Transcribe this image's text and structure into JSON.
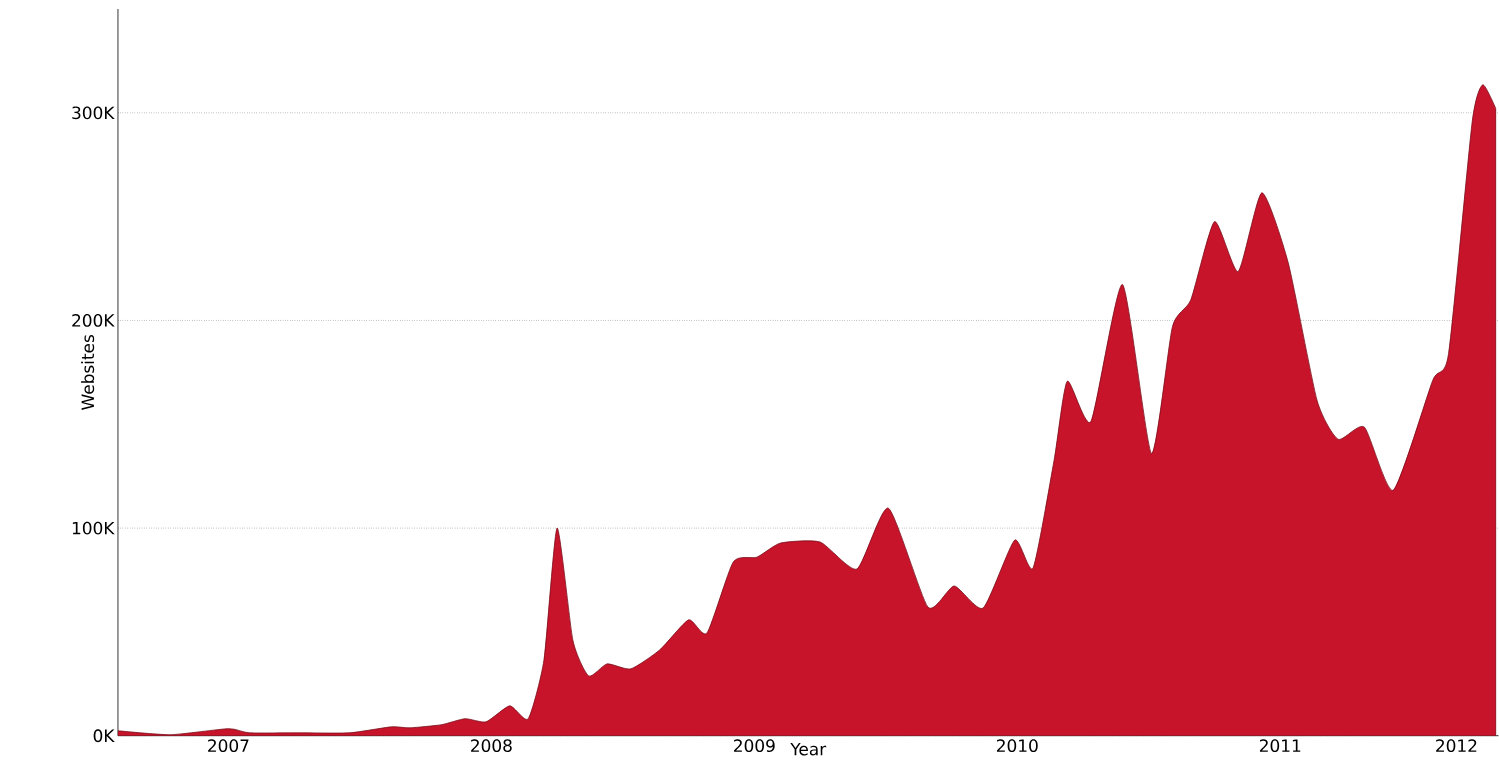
{
  "chart_data": {
    "type": "area",
    "xlabel": "Year",
    "ylabel": "Websites",
    "x": [
      2006.58,
      2006.78,
      2007.0,
      2007.08,
      2007.27,
      2007.46,
      2007.62,
      2007.69,
      2007.81,
      2007.9,
      2007.98,
      2008.07,
      2008.14,
      2008.2,
      2008.25,
      2008.31,
      2008.37,
      2008.44,
      2008.53,
      2008.64,
      2008.75,
      2008.82,
      2008.92,
      2009.01,
      2009.1,
      2009.25,
      2009.39,
      2009.51,
      2009.66,
      2009.76,
      2009.87,
      2009.99,
      2010.06,
      2010.14,
      2010.19,
      2010.28,
      2010.4,
      2010.51,
      2010.59,
      2010.66,
      2010.75,
      2010.84,
      2010.93,
      2011.03,
      2011.14,
      2011.22,
      2011.32,
      2011.43,
      2011.58,
      2011.64,
      2011.73,
      2011.77,
      2011.82
    ],
    "series": [
      {
        "color": "#c8142a",
        "values": [
          2.4,
          0.5,
          3.4,
          1.4,
          1.4,
          1.4,
          4.3,
          3.8,
          5.3,
          8.2,
          6.7,
          14.4,
          8.2,
          36.5,
          100,
          46,
          28.8,
          34.6,
          32.2,
          41.3,
          55.8,
          49.5,
          83.7,
          86,
          92.8,
          93.3,
          80.3,
          109.6,
          62,
          72.1,
          61.5,
          94.2,
          80.8,
          132.7,
          170.7,
          151.4,
          217.3,
          136,
          197,
          210,
          247.6,
          223.6,
          261.5,
          227.9,
          161.5,
          142.8,
          148.6,
          118.3,
          171.2,
          184,
          295.7,
          313.5,
          302
        ]
      }
    ],
    "xlim": [
      2006.58,
      2011.83
    ],
    "ylim": [
      0,
      350
    ],
    "xticks": [
      2007,
      2008,
      2009,
      2010,
      2011,
      {
        "value": 2011.67,
        "label": "2012"
      }
    ],
    "yticks": [
      {
        "value": 0,
        "label": "0K"
      },
      {
        "value": 100,
        "label": "100K"
      },
      {
        "value": 200,
        "label": "200K"
      },
      {
        "value": 300,
        "label": "300K"
      }
    ],
    "grid": "y",
    "marker": "none"
  }
}
